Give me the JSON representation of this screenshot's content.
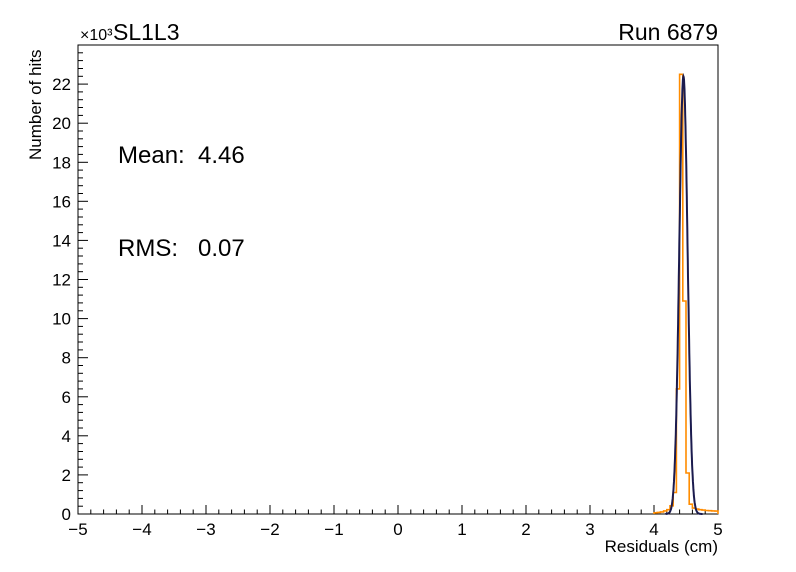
{
  "chart_data": {
    "type": "histogram",
    "title": "SL1L3",
    "corner_label": "Run 6879",
    "xlabel": "Residuals (cm)",
    "ylabel": "Number of hits",
    "y_axis_exponent": "×10³",
    "xlim": [
      -5,
      5
    ],
    "ylim": [
      0,
      24000
    ],
    "grid": false,
    "x_ticks": [
      {
        "v": -5,
        "label": "−5"
      },
      {
        "v": -4,
        "label": "−4"
      },
      {
        "v": -3,
        "label": "−3"
      },
      {
        "v": -2,
        "label": "−2"
      },
      {
        "v": -1,
        "label": "−1"
      },
      {
        "v": 0,
        "label": "0"
      },
      {
        "v": 1,
        "label": "1"
      },
      {
        "v": 2,
        "label": "2"
      },
      {
        "v": 3,
        "label": "3"
      },
      {
        "v": 4,
        "label": "4"
      },
      {
        "v": 5,
        "label": "5"
      }
    ],
    "y_ticks": [
      {
        "v": 0,
        "label": "0"
      },
      {
        "v": 2000,
        "label": "2"
      },
      {
        "v": 4000,
        "label": "4"
      },
      {
        "v": 6000,
        "label": "6"
      },
      {
        "v": 8000,
        "label": "8"
      },
      {
        "v": 10000,
        "label": "10"
      },
      {
        "v": 12000,
        "label": "12"
      },
      {
        "v": 14000,
        "label": "14"
      },
      {
        "v": 16000,
        "label": "16"
      },
      {
        "v": 18000,
        "label": "18"
      },
      {
        "v": 20000,
        "label": "20"
      },
      {
        "v": 22000,
        "label": "22"
      }
    ],
    "stats": {
      "mean_label": "Mean:",
      "mean_value": "4.46",
      "rms_label": "RMS:",
      "rms_value": "0.07"
    },
    "hist": {
      "bin_width": 0.05,
      "edges": [
        4.0,
        4.05,
        4.1,
        4.15,
        4.2,
        4.25,
        4.3,
        4.35,
        4.4,
        4.45,
        4.5,
        4.55,
        4.6,
        4.65,
        4.7,
        4.75,
        4.8,
        4.85,
        4.9,
        4.95,
        5.0
      ],
      "counts": [
        60,
        80,
        110,
        160,
        220,
        420,
        1100,
        6400,
        22500,
        10900,
        2100,
        500,
        300,
        250,
        220,
        200,
        180,
        170,
        160,
        150
      ]
    },
    "fit": {
      "shape": "gaussian",
      "mean": 4.46,
      "sigma": 0.065,
      "amplitude": 22400,
      "range": [
        4.18,
        4.76
      ]
    },
    "colors": {
      "histogram": "#ff8c00",
      "fit": "#1b1b4e",
      "axis": "#000000",
      "background": "#ffffff"
    }
  }
}
